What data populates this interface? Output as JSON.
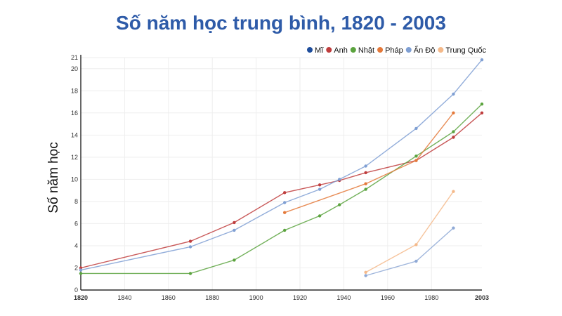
{
  "chart_data": {
    "type": "line",
    "title": "Số năm học trung bình, 1820 - 2003",
    "xlabel": "",
    "ylabel": "Số năm học",
    "xlim": [
      1820,
      2003
    ],
    "ylim": [
      0,
      21
    ],
    "x_ticks": [
      "1820",
      "1840",
      "1860",
      "1880",
      "1900",
      "1920",
      "1940",
      "1960",
      "1980",
      "2003"
    ],
    "y_ticks": [
      "0",
      "2",
      "4",
      "6",
      "8",
      "10",
      "12",
      "14",
      "16",
      "18",
      "20",
      "21"
    ],
    "grid": true,
    "legend_position": "top-right",
    "colors": {
      "title": "#2E5BA8",
      "axis": "#000000",
      "grid": "#EEEEEE"
    },
    "series": [
      {
        "name": "Mĩ",
        "color": "#1F4E9C",
        "x": [],
        "y": []
      },
      {
        "name": "Anh",
        "color": "#BF3D3D",
        "x": [
          1820,
          1870,
          1890,
          1913,
          1929,
          1938,
          1950,
          1973,
          1990,
          2003
        ],
        "y": [
          2.0,
          4.4,
          6.1,
          8.8,
          9.5,
          9.9,
          10.6,
          11.7,
          13.8,
          16.0
        ]
      },
      {
        "name": "Nhật",
        "color": "#5BA33E",
        "x": [
          1820,
          1870,
          1890,
          1913,
          1929,
          1938,
          1950,
          1973,
          1990,
          2003
        ],
        "y": [
          1.5,
          1.5,
          2.7,
          5.4,
          6.7,
          7.7,
          9.1,
          12.1,
          14.3,
          16.8
        ]
      },
      {
        "name": "Pháp",
        "color": "#E4793A",
        "x": [
          1913,
          1950,
          1973,
          1990
        ],
        "y": [
          7.0,
          9.6,
          11.7,
          16.0
        ]
      },
      {
        "name": "Ấn Độ",
        "color": "#7F9FD3",
        "x": [
          1820,
          1870,
          1890,
          1913,
          1929,
          1938,
          1950,
          1973,
          1990,
          2003
        ],
        "y": [
          1.8,
          3.9,
          5.4,
          7.9,
          9.1,
          10.0,
          11.2,
          14.6,
          17.7,
          20.8
        ]
      },
      {
        "name": "Trung Quốc",
        "color": "#F4B98A",
        "x": [
          1950,
          1973,
          1990
        ],
        "y": [
          1.6,
          4.1,
          8.9
        ]
      },
      {
        "name": "",
        "color": "#8FA9D6",
        "x": [
          1950,
          1973,
          1990
        ],
        "y": [
          1.3,
          2.6,
          5.6
        ]
      }
    ]
  }
}
